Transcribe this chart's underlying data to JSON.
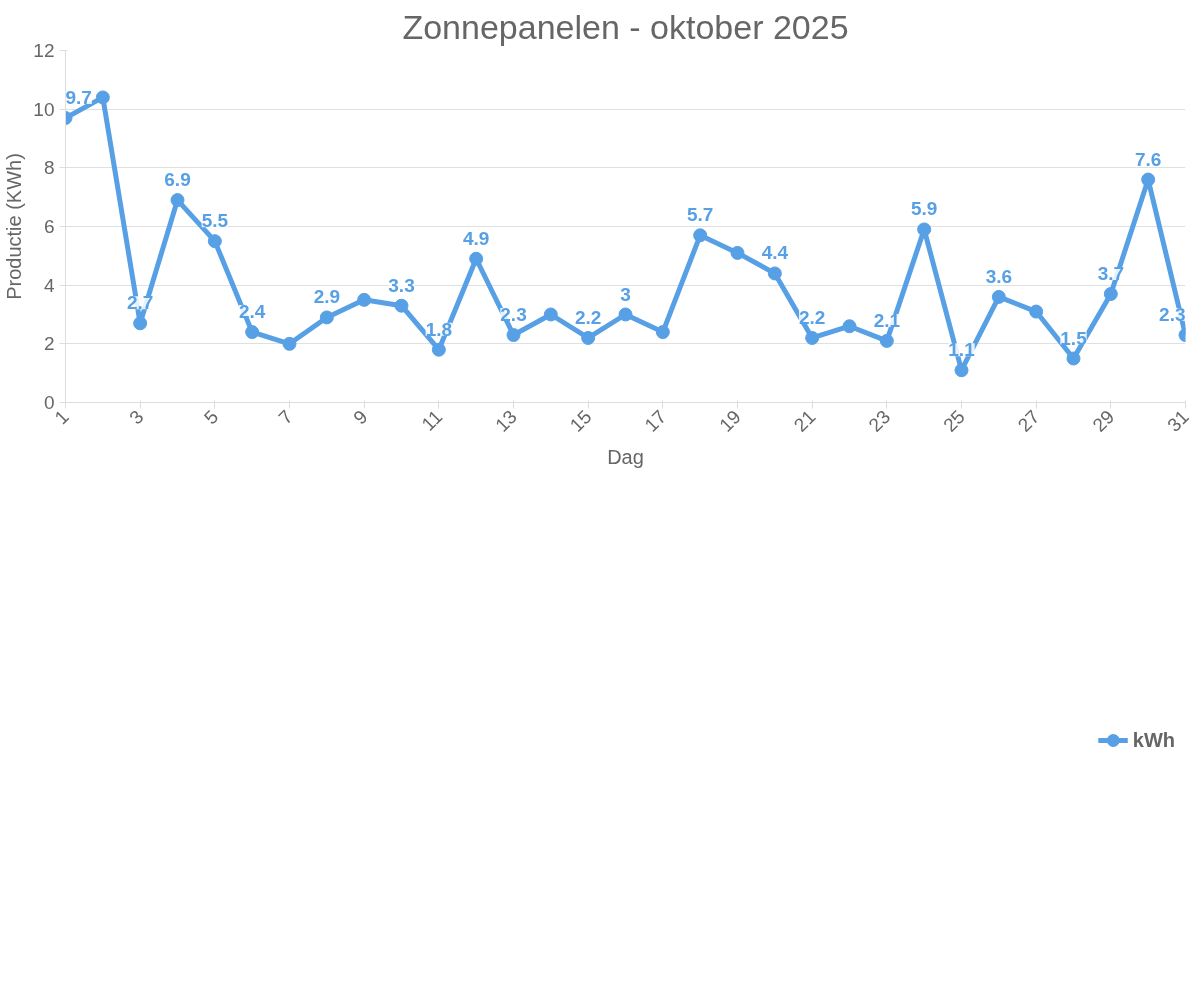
{
  "chart_data": {
    "type": "line",
    "title": "Zonnepanelen - oktober 2025",
    "xlabel": "Dag",
    "ylabel": "Productie (KWh)",
    "x": [
      1,
      2,
      3,
      4,
      5,
      6,
      7,
      8,
      9,
      10,
      11,
      12,
      13,
      14,
      15,
      16,
      17,
      18,
      19,
      20,
      21,
      22,
      23,
      24,
      25,
      26,
      27,
      28,
      29,
      30,
      31
    ],
    "series": [
      {
        "name": "kWh",
        "color": "#57a0e5",
        "values": [
          9.7,
          10.4,
          2.7,
          6.9,
          5.5,
          2.4,
          2.0,
          2.9,
          3.5,
          3.3,
          1.8,
          4.9,
          2.3,
          3.0,
          2.2,
          3.0,
          2.4,
          5.7,
          5.1,
          4.4,
          2.2,
          2.6,
          2.1,
          5.9,
          1.1,
          3.6,
          3.1,
          1.5,
          3.7,
          7.6,
          2.3
        ],
        "value_labels": [
          "9.7",
          null,
          "2.7",
          "6.9",
          "5.5",
          "2.4",
          null,
          "2.9",
          null,
          "3.3",
          "1.8",
          "4.9",
          "2.3",
          null,
          "2.2",
          "3",
          null,
          "5.7",
          null,
          "4.4",
          "2.2",
          null,
          "2.1",
          "5.9",
          "1.1",
          "3.6",
          null,
          "1.5",
          "3.7",
          "7.6",
          "2.3"
        ]
      }
    ],
    "xlim": [
      1,
      31
    ],
    "xticks": [
      1,
      3,
      5,
      7,
      9,
      11,
      13,
      15,
      17,
      19,
      21,
      23,
      25,
      27,
      29,
      31
    ],
    "ylim": [
      0,
      12
    ],
    "yticks": [
      0,
      2,
      4,
      6,
      8,
      10,
      12
    ],
    "grid": "y",
    "legend": "bottom",
    "marker": "circle",
    "line_style": "solid"
  }
}
